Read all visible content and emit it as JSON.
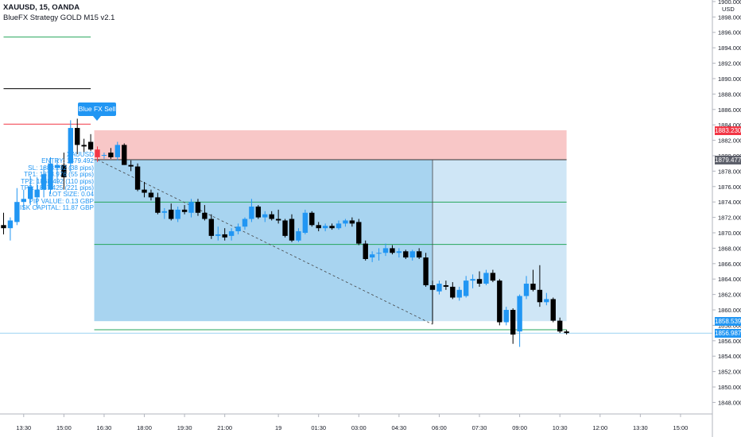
{
  "header": {
    "symbol_line": "XAUUSD, 15, OANDA",
    "indicator_line": "BlueFX Strategy GOLD M15 v2.1"
  },
  "signal": {
    "sell_label": "Blue FX Sell",
    "info_lines": [
      "XAUUSD",
      "ENTRY: 1879.492",
      "SL: 1883.292 (38 pips)",
      "TP1: 1873.976 (55 pips)",
      "TP2: 1868.492 (110 pips)",
      "TP3: 1857.425 (221 pips)",
      "LOT SIZE: 0.04",
      "PIP VALUE: 0.13 GBP",
      "RISK CAPITAL: 11.87 GBP"
    ]
  },
  "price_labels": {
    "sl": "1883.230",
    "entry": "1879.477",
    "target": "1858.539",
    "current": "1856.987",
    "currency": "USD"
  },
  "colors": {
    "up": "#2196f3",
    "down": "#000000",
    "entry_candle": "#f23645",
    "sl_zone": "#f8c7c7",
    "tp_zone": "#a8d4f0",
    "tp_zone_light": "#cfe6f6",
    "sl_line": "#f23645",
    "tp_line": "#26a65b"
  },
  "chart_data": {
    "type": "candlestick",
    "y_axis": {
      "unit": "USD",
      "ylim": [
        1846.5,
        1900.2
      ],
      "ticks": [
        1848,
        1850,
        1852,
        1854,
        1856,
        1858,
        1860,
        1862,
        1864,
        1866,
        1868,
        1870,
        1872,
        1874,
        1876,
        1878,
        1880,
        1882,
        1884,
        1886,
        1888,
        1890,
        1892,
        1894,
        1896,
        1898,
        1900
      ],
      "tick_labels": [
        "1848.000",
        "1850.000",
        "1852.000",
        "1854.000",
        "1856.000",
        "1858.000",
        "1860.000",
        "1862.000",
        "1864.000",
        "1866.000",
        "1868.000",
        "1870.000",
        "1872.000",
        "1874.000",
        "1876.000",
        "1878.000",
        "1880.000",
        "1882.000",
        "1884.000",
        "1886.000",
        "1888.000",
        "1890.000",
        "1892.000",
        "1894.000",
        "1896.000",
        "1898.000",
        "1900.000"
      ]
    },
    "x_axis": {
      "bar_count": 93,
      "ticks": [
        {
          "bar": 3,
          "label": "13:30"
        },
        {
          "bar": 9,
          "label": "15:00"
        },
        {
          "bar": 15,
          "label": "16:30"
        },
        {
          "bar": 21,
          "label": "18:00"
        },
        {
          "bar": 27,
          "label": "19:30"
        },
        {
          "bar": 33,
          "label": "21:00"
        },
        {
          "bar": 41,
          "label": "19"
        },
        {
          "bar": 47,
          "label": "01:30"
        },
        {
          "bar": 53,
          "label": "03:00"
        },
        {
          "bar": 59,
          "label": "04:30"
        },
        {
          "bar": 65,
          "label": "06:00"
        },
        {
          "bar": 71,
          "label": "07:30"
        },
        {
          "bar": 77,
          "label": "09:00"
        },
        {
          "bar": 83,
          "label": "10:30"
        },
        {
          "bar": 89,
          "label": "12:00"
        },
        {
          "bar": 95,
          "label": "13:30"
        },
        {
          "bar": 101,
          "label": "15:00"
        }
      ]
    },
    "candles": [
      {
        "o": 1871.0,
        "h": 1872.6,
        "l": 1869.8,
        "c": 1870.6
      },
      {
        "o": 1870.6,
        "h": 1872.0,
        "l": 1869.0,
        "c": 1871.6
      },
      {
        "o": 1871.4,
        "h": 1875.8,
        "l": 1871.0,
        "c": 1874.0
      },
      {
        "o": 1874.0,
        "h": 1875.6,
        "l": 1873.0,
        "c": 1874.4
      },
      {
        "o": 1874.4,
        "h": 1877.4,
        "l": 1873.6,
        "c": 1876.0
      },
      {
        "o": 1874.6,
        "h": 1877.2,
        "l": 1873.2,
        "c": 1875.6
      },
      {
        "o": 1875.6,
        "h": 1878.6,
        "l": 1874.6,
        "c": 1877.6
      },
      {
        "o": 1875.6,
        "h": 1879.8,
        "l": 1875.0,
        "c": 1879.0
      },
      {
        "o": 1878.4,
        "h": 1879.6,
        "l": 1876.4,
        "c": 1878.8
      },
      {
        "o": 1878.8,
        "h": 1880.4,
        "l": 1875.6,
        "c": 1877.2
      },
      {
        "o": 1879.0,
        "h": 1884.6,
        "l": 1878.0,
        "c": 1883.6
      },
      {
        "o": 1883.6,
        "h": 1884.8,
        "l": 1880.2,
        "c": 1881.4
      },
      {
        "o": 1881.4,
        "h": 1882.2,
        "l": 1880.4,
        "c": 1881.2
      },
      {
        "o": 1881.8,
        "h": 1882.8,
        "l": 1880.6,
        "c": 1880.8
      },
      {
        "o": 1879.8,
        "h": 1881.2,
        "l": 1879.2,
        "c": 1880.8
      },
      {
        "o": 1880.0,
        "h": 1880.4,
        "l": 1879.6,
        "c": 1880.1
      },
      {
        "o": 1880.4,
        "h": 1881.0,
        "l": 1879.6,
        "c": 1879.8
      },
      {
        "o": 1879.8,
        "h": 1881.8,
        "l": 1879.4,
        "c": 1881.4
      },
      {
        "o": 1881.4,
        "h": 1881.6,
        "l": 1878.8,
        "c": 1878.8
      },
      {
        "o": 1878.8,
        "h": 1879.4,
        "l": 1878.0,
        "c": 1878.6
      },
      {
        "o": 1878.6,
        "h": 1879.0,
        "l": 1875.4,
        "c": 1875.6
      },
      {
        "o": 1875.6,
        "h": 1876.6,
        "l": 1874.6,
        "c": 1875.2
      },
      {
        "o": 1875.2,
        "h": 1875.6,
        "l": 1874.2,
        "c": 1874.6
      },
      {
        "o": 1874.6,
        "h": 1875.2,
        "l": 1872.4,
        "c": 1872.6
      },
      {
        "o": 1872.6,
        "h": 1873.2,
        "l": 1871.8,
        "c": 1872.8
      },
      {
        "o": 1873.0,
        "h": 1873.8,
        "l": 1871.6,
        "c": 1871.8
      },
      {
        "o": 1871.8,
        "h": 1873.4,
        "l": 1871.4,
        "c": 1873.0
      },
      {
        "o": 1873.0,
        "h": 1873.6,
        "l": 1872.4,
        "c": 1872.7
      },
      {
        "o": 1872.6,
        "h": 1874.4,
        "l": 1872.0,
        "c": 1874.0
      },
      {
        "o": 1874.0,
        "h": 1874.4,
        "l": 1872.2,
        "c": 1872.6
      },
      {
        "o": 1872.6,
        "h": 1873.6,
        "l": 1871.6,
        "c": 1871.8
      },
      {
        "o": 1871.8,
        "h": 1872.4,
        "l": 1869.2,
        "c": 1869.6
      },
      {
        "o": 1869.6,
        "h": 1870.8,
        "l": 1869.0,
        "c": 1869.8
      },
      {
        "o": 1869.8,
        "h": 1870.6,
        "l": 1869.0,
        "c": 1869.4
      },
      {
        "o": 1869.6,
        "h": 1870.6,
        "l": 1869.0,
        "c": 1870.2
      },
      {
        "o": 1870.2,
        "h": 1871.2,
        "l": 1869.8,
        "c": 1870.8
      },
      {
        "o": 1870.8,
        "h": 1872.0,
        "l": 1870.4,
        "c": 1871.8
      },
      {
        "o": 1871.8,
        "h": 1874.4,
        "l": 1871.4,
        "c": 1873.4
      },
      {
        "o": 1873.4,
        "h": 1873.6,
        "l": 1871.8,
        "c": 1872.0
      },
      {
        "o": 1872.0,
        "h": 1872.8,
        "l": 1871.4,
        "c": 1872.4
      },
      {
        "o": 1872.4,
        "h": 1872.8,
        "l": 1871.6,
        "c": 1871.8
      },
      {
        "o": 1871.8,
        "h": 1873.0,
        "l": 1871.2,
        "c": 1871.6
      },
      {
        "o": 1871.6,
        "h": 1871.8,
        "l": 1869.4,
        "c": 1869.6
      },
      {
        "o": 1871.8,
        "h": 1872.4,
        "l": 1868.8,
        "c": 1869.0
      },
      {
        "o": 1869.0,
        "h": 1870.6,
        "l": 1868.8,
        "c": 1870.2
      },
      {
        "o": 1870.0,
        "h": 1873.0,
        "l": 1869.8,
        "c": 1872.6
      },
      {
        "o": 1872.6,
        "h": 1872.8,
        "l": 1870.8,
        "c": 1871.0
      },
      {
        "o": 1871.0,
        "h": 1871.4,
        "l": 1870.2,
        "c": 1870.6
      },
      {
        "o": 1870.6,
        "h": 1871.2,
        "l": 1870.2,
        "c": 1870.9
      },
      {
        "o": 1870.9,
        "h": 1871.2,
        "l": 1870.4,
        "c": 1870.6
      },
      {
        "o": 1870.6,
        "h": 1871.6,
        "l": 1870.4,
        "c": 1871.2
      },
      {
        "o": 1871.2,
        "h": 1871.8,
        "l": 1870.8,
        "c": 1871.6
      },
      {
        "o": 1871.6,
        "h": 1872.0,
        "l": 1870.8,
        "c": 1871.2
      },
      {
        "o": 1871.4,
        "h": 1871.8,
        "l": 1868.4,
        "c": 1868.6
      },
      {
        "o": 1868.6,
        "h": 1869.0,
        "l": 1866.4,
        "c": 1866.6
      },
      {
        "o": 1866.8,
        "h": 1867.6,
        "l": 1866.2,
        "c": 1867.2
      },
      {
        "o": 1867.4,
        "h": 1868.0,
        "l": 1866.4,
        "c": 1867.4
      },
      {
        "o": 1867.4,
        "h": 1868.6,
        "l": 1867.0,
        "c": 1868.0
      },
      {
        "o": 1868.0,
        "h": 1868.4,
        "l": 1867.2,
        "c": 1867.4
      },
      {
        "o": 1867.4,
        "h": 1868.0,
        "l": 1866.8,
        "c": 1867.6
      },
      {
        "o": 1867.6,
        "h": 1867.8,
        "l": 1866.6,
        "c": 1866.8
      },
      {
        "o": 1866.8,
        "h": 1867.8,
        "l": 1866.4,
        "c": 1867.6
      },
      {
        "o": 1867.6,
        "h": 1868.0,
        "l": 1866.6,
        "c": 1866.8
      },
      {
        "o": 1866.8,
        "h": 1867.4,
        "l": 1863.0,
        "c": 1863.2
      },
      {
        "o": 1863.2,
        "h": 1863.8,
        "l": 1858.2,
        "c": 1862.6
      },
      {
        "o": 1862.4,
        "h": 1863.8,
        "l": 1862.0,
        "c": 1863.4
      },
      {
        "o": 1863.2,
        "h": 1863.8,
        "l": 1862.6,
        "c": 1863.0
      },
      {
        "o": 1863.0,
        "h": 1863.6,
        "l": 1861.4,
        "c": 1861.6
      },
      {
        "o": 1861.6,
        "h": 1863.0,
        "l": 1861.2,
        "c": 1862.6
      },
      {
        "o": 1861.8,
        "h": 1864.4,
        "l": 1861.6,
        "c": 1863.8
      },
      {
        "o": 1863.8,
        "h": 1864.6,
        "l": 1862.8,
        "c": 1864.0
      },
      {
        "o": 1864.0,
        "h": 1865.0,
        "l": 1863.0,
        "c": 1863.4
      },
      {
        "o": 1863.4,
        "h": 1865.2,
        "l": 1863.2,
        "c": 1864.8
      },
      {
        "o": 1864.8,
        "h": 1865.2,
        "l": 1863.6,
        "c": 1863.8
      },
      {
        "o": 1863.8,
        "h": 1864.0,
        "l": 1858.0,
        "c": 1858.4
      },
      {
        "o": 1858.4,
        "h": 1860.4,
        "l": 1858.0,
        "c": 1860.0
      },
      {
        "o": 1860.0,
        "h": 1860.2,
        "l": 1855.6,
        "c": 1856.8
      },
      {
        "o": 1857.2,
        "h": 1862.0,
        "l": 1855.2,
        "c": 1861.8
      },
      {
        "o": 1861.8,
        "h": 1864.4,
        "l": 1861.4,
        "c": 1863.4
      },
      {
        "o": 1863.4,
        "h": 1865.2,
        "l": 1862.4,
        "c": 1862.6
      },
      {
        "o": 1862.6,
        "h": 1865.8,
        "l": 1860.4,
        "c": 1861.0
      },
      {
        "o": 1861.0,
        "h": 1862.2,
        "l": 1860.6,
        "c": 1861.4
      },
      {
        "o": 1861.4,
        "h": 1861.6,
        "l": 1858.4,
        "c": 1858.6
      },
      {
        "o": 1858.6,
        "h": 1859.0,
        "l": 1857.0,
        "c": 1857.2
      },
      {
        "o": 1857.2,
        "h": 1857.4,
        "l": 1856.8,
        "c": 1857.0
      }
    ],
    "levels": {
      "tp_far": 1895.4,
      "black_line": 1888.7,
      "sl_left": 1884.1,
      "sl_top": 1883.3,
      "entry": 1879.48,
      "tp1": 1873.98,
      "tp2": 1868.49,
      "tp_zone_bottom": 1858.54,
      "tp3": 1857.43,
      "current": 1856.99
    },
    "projection": {
      "start_bar": 14,
      "target_bar": 64,
      "split_bar": 64,
      "end_bar": 84,
      "left_lines_start_bar": 0,
      "left_lines_end_bar": 13
    }
  }
}
